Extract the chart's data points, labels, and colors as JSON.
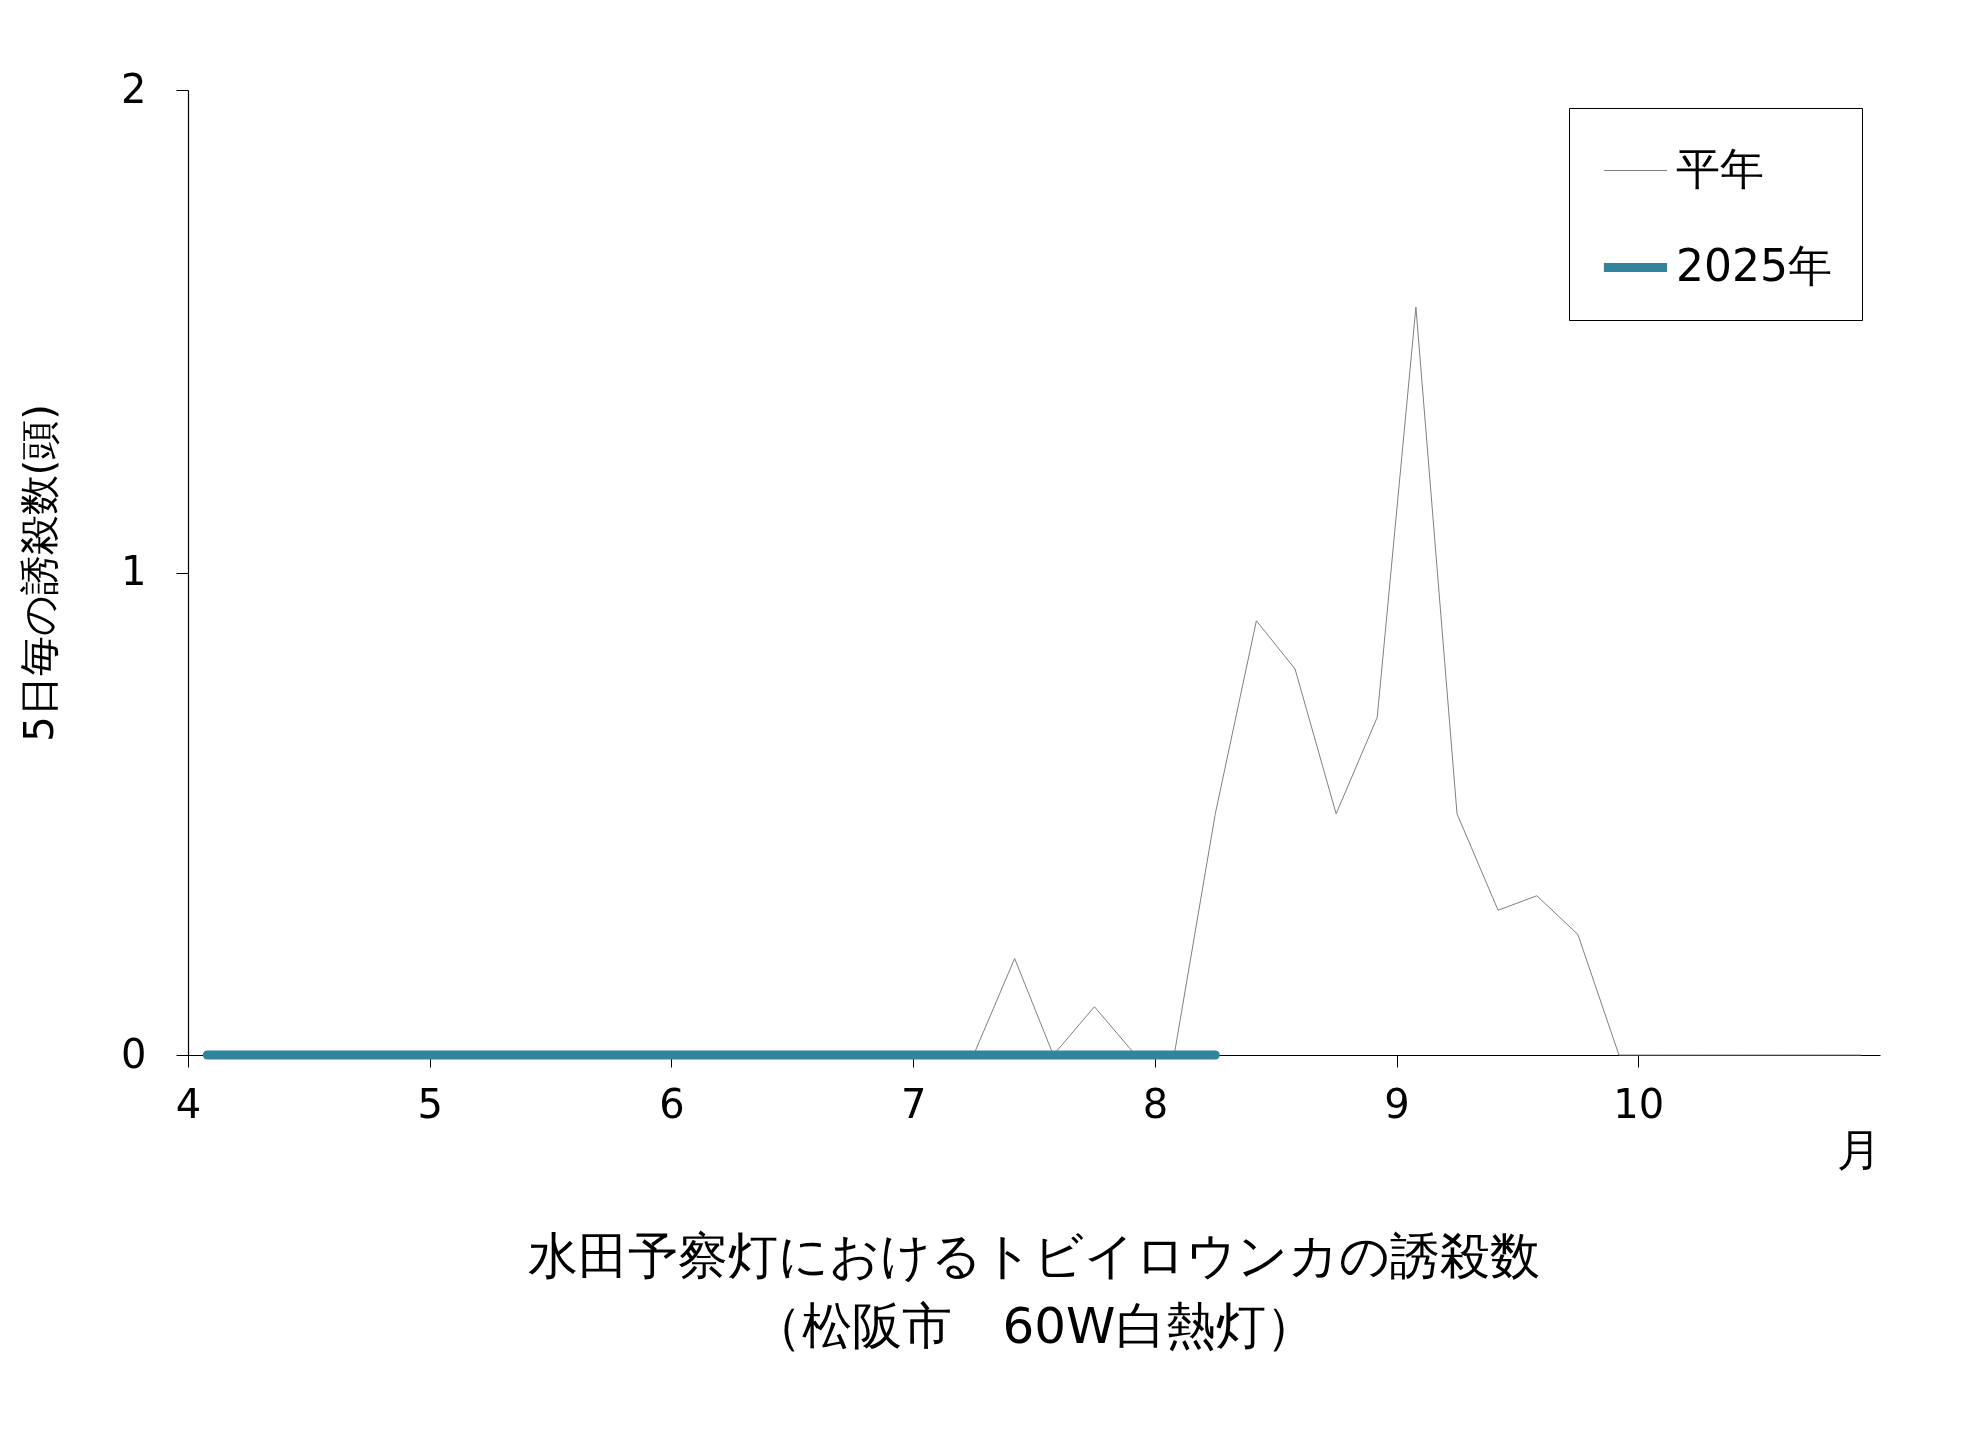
{
  "chart_data": {
    "type": "line",
    "title": "水田予察灯におけるトビイロウンカの誘殺数",
    "subtitle": "（松阪市　60W白熱灯）",
    "xlabel": "月",
    "ylabel": "5日毎の誘殺数(頭)",
    "x": [
      4.08,
      4.25,
      4.42,
      4.58,
      4.75,
      4.92,
      5.08,
      5.25,
      5.42,
      5.58,
      5.75,
      5.92,
      6.08,
      6.25,
      6.42,
      6.58,
      6.75,
      6.92,
      7.08,
      7.25,
      7.42,
      7.58,
      7.75,
      7.92,
      8.08,
      8.25,
      8.42,
      8.58,
      8.75,
      8.92,
      9.08,
      9.25,
      9.42,
      9.58,
      9.75,
      9.92,
      10.08,
      10.25,
      10.42,
      10.58,
      10.75,
      10.92
    ],
    "series": [
      {
        "name": "平年",
        "color": "#808080",
        "values": [
          null,
          null,
          null,
          null,
          null,
          null,
          null,
          null,
          null,
          null,
          null,
          null,
          null,
          null,
          null,
          null,
          null,
          null,
          0,
          0,
          0.2,
          0,
          0.1,
          0,
          0,
          0.5,
          0.9,
          0.8,
          0.5,
          0.7,
          1.55,
          0.5,
          0.3,
          0.33,
          0.25,
          0,
          0,
          0,
          0,
          0,
          0,
          0
        ]
      },
      {
        "name": "2025年",
        "color": "#31849b",
        "values": [
          0,
          0,
          0,
          0,
          0,
          0,
          0,
          0,
          0,
          0,
          0,
          0,
          0,
          0,
          0,
          0,
          0,
          0,
          0,
          0,
          0,
          0,
          0,
          0,
          0,
          0,
          null,
          null,
          null,
          null,
          null,
          null,
          null,
          null,
          null,
          null,
          null,
          null,
          null,
          null,
          null,
          null
        ]
      }
    ],
    "xlim": [
      4,
      11
    ],
    "xticks": [
      4,
      5,
      6,
      7,
      8,
      9,
      10
    ],
    "ylim": [
      0,
      2
    ],
    "yticks": [
      0,
      1,
      2
    ],
    "grid": false,
    "legend": "top right",
    "marker": "none"
  }
}
